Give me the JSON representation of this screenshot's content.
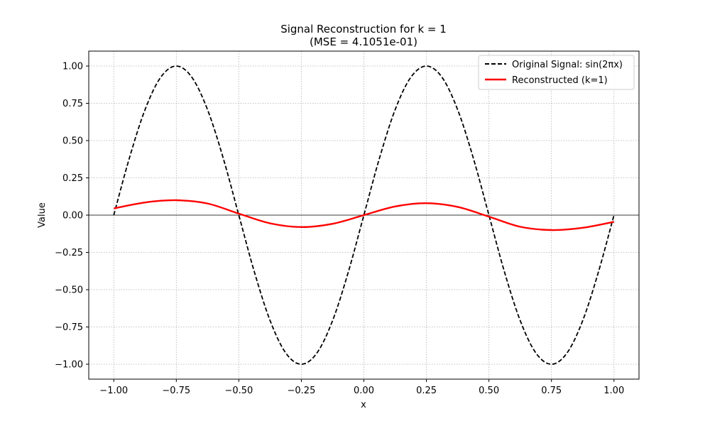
{
  "chart_data": {
    "type": "line",
    "title": "Signal Reconstruction for k = 1",
    "subtitle": "(MSE = 4.1051e-01)",
    "xlabel": "x",
    "ylabel": "Value",
    "xlim": [
      -1.1,
      1.1
    ],
    "ylim": [
      -1.1,
      1.1
    ],
    "xticks": [
      -1.0,
      -0.75,
      -0.5,
      -0.25,
      0.0,
      0.25,
      0.5,
      0.75,
      1.0
    ],
    "xtick_labels": [
      "−1.00",
      "−0.75",
      "−0.50",
      "−0.25",
      "0.00",
      "0.25",
      "0.50",
      "0.75",
      "1.00"
    ],
    "yticks": [
      -1.0,
      -0.75,
      -0.5,
      -0.25,
      0.0,
      0.25,
      0.5,
      0.75,
      1.0
    ],
    "ytick_labels": [
      "−1.00",
      "−0.75",
      "−0.50",
      "−0.25",
      "0.00",
      "0.25",
      "0.50",
      "0.75",
      "1.00"
    ],
    "grid": true,
    "legend_position": "top-right",
    "zero_line": true,
    "series": [
      {
        "name": "Original Signal: sin(2πx)",
        "color": "#000000",
        "style": "dashed",
        "x": [
          -1.0,
          -0.9375,
          -0.875,
          -0.8125,
          -0.75,
          -0.6875,
          -0.625,
          -0.5625,
          -0.5,
          -0.4375,
          -0.375,
          -0.3125,
          -0.25,
          -0.1875,
          -0.125,
          -0.0625,
          0.0,
          0.0625,
          0.125,
          0.1875,
          0.25,
          0.3125,
          0.375,
          0.4375,
          0.5,
          0.5625,
          0.625,
          0.6875,
          0.75,
          0.8125,
          0.875,
          0.9375,
          1.0
        ],
        "y": [
          0.0,
          0.383,
          0.707,
          0.924,
          1.0,
          0.924,
          0.707,
          0.383,
          0.0,
          -0.383,
          -0.707,
          -0.924,
          -1.0,
          -0.924,
          -0.707,
          -0.383,
          0.0,
          0.383,
          0.707,
          0.924,
          1.0,
          0.924,
          0.707,
          0.383,
          0.0,
          -0.383,
          -0.707,
          -0.924,
          -1.0,
          -0.924,
          -0.707,
          -0.383,
          0.0
        ]
      },
      {
        "name": "Reconstructed (k=1)",
        "color": "#ff0000",
        "style": "solid",
        "x": [
          -1.0,
          -0.875,
          -0.75,
          -0.625,
          -0.5,
          -0.375,
          -0.25,
          -0.125,
          0.0,
          0.125,
          0.25,
          0.375,
          0.5,
          0.625,
          0.75,
          0.875,
          1.0
        ],
        "y": [
          0.045,
          0.085,
          0.1,
          0.078,
          0.01,
          -0.055,
          -0.08,
          -0.058,
          0.0,
          0.058,
          0.08,
          0.055,
          -0.01,
          -0.078,
          -0.1,
          -0.085,
          -0.045
        ]
      }
    ]
  }
}
